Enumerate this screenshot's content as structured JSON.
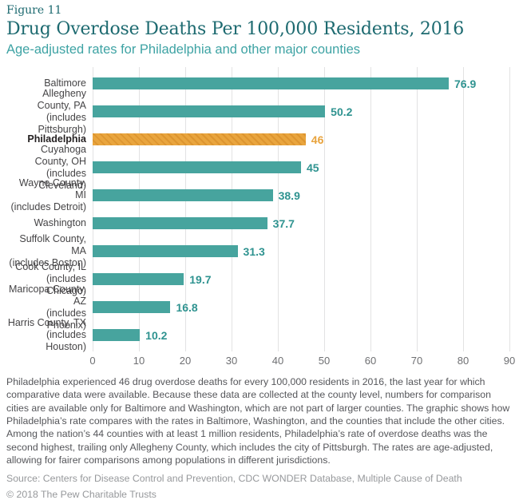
{
  "header": {
    "figure_label": "Figure 11",
    "title": "Drug Overdose Deaths Per 100,000 Residents, 2016",
    "subtitle": "Age-adjusted rates for Philadelphia and other major counties"
  },
  "chart_data": {
    "type": "bar",
    "orientation": "horizontal",
    "title": "Drug Overdose Deaths Per 100,000 Residents, 2016",
    "categories": [
      "Baltimore",
      "Allegheny County, PA",
      "Philadelphia",
      "Cuyahoga County, OH",
      "Wayne County, MI",
      "Washington",
      "Suffolk County, MA",
      "Cook County, IL",
      "Maricopa County, AZ",
      "Harris County, TX"
    ],
    "sublabels": [
      "",
      "(includes Pittsburgh)",
      "",
      "(includes Cleveland)",
      "(includes Detroit)",
      "",
      "(includes Boston)",
      "(includes Chicago)",
      "(includes Phoenix)",
      "(includes Houston)"
    ],
    "values": [
      76.9,
      50.2,
      46,
      45,
      38.9,
      37.7,
      31.3,
      19.7,
      16.8,
      10.2
    ],
    "value_labels": [
      "76.9",
      "50.2",
      "46",
      "45",
      "38.9",
      "37.7",
      "31.3",
      "19.7",
      "16.8",
      "10.2"
    ],
    "xlim": [
      0,
      90
    ],
    "x_ticks": [
      "0",
      "10",
      "20",
      "30",
      "40",
      "50",
      "60",
      "70",
      "80",
      "90"
    ],
    "grid": "vertical",
    "legend": "none",
    "highlight_index": 2,
    "highlight_pattern": "diagonal-hatch",
    "colors": {
      "bar": "#47a49e",
      "bar_highlight": "#e8a33d",
      "value_label": "#2f9390",
      "value_label_highlight": "#e8a33d",
      "gridline": "#e2e2e3"
    }
  },
  "footer": {
    "notes": "Philadelphia experienced 46 drug overdose deaths for every 100,000 residents in 2016, the last year for which comparative data were available. Because these data are collected at the county level, numbers for comparison cities are available only for Baltimore and Washington, which are not part of larger counties. The graphic shows how Philadelphia’s rate compares with the rates in Baltimore, Washington, and the counties that include the other cities. Among the nation’s 44 counties with at least 1 million residents, Philadelphia’s rate of overdose deaths was the second highest, trailing only Allegheny County, which includes the city of Pittsburgh. The rates are age-adjusted, allowing for fairer comparisons among populations in different jurisdictions.",
    "source": "Source: Centers for Disease Control and Prevention, CDC WONDER Database, Multiple Cause of Death",
    "copyright": "© 2018 The Pew Charitable Trusts"
  }
}
